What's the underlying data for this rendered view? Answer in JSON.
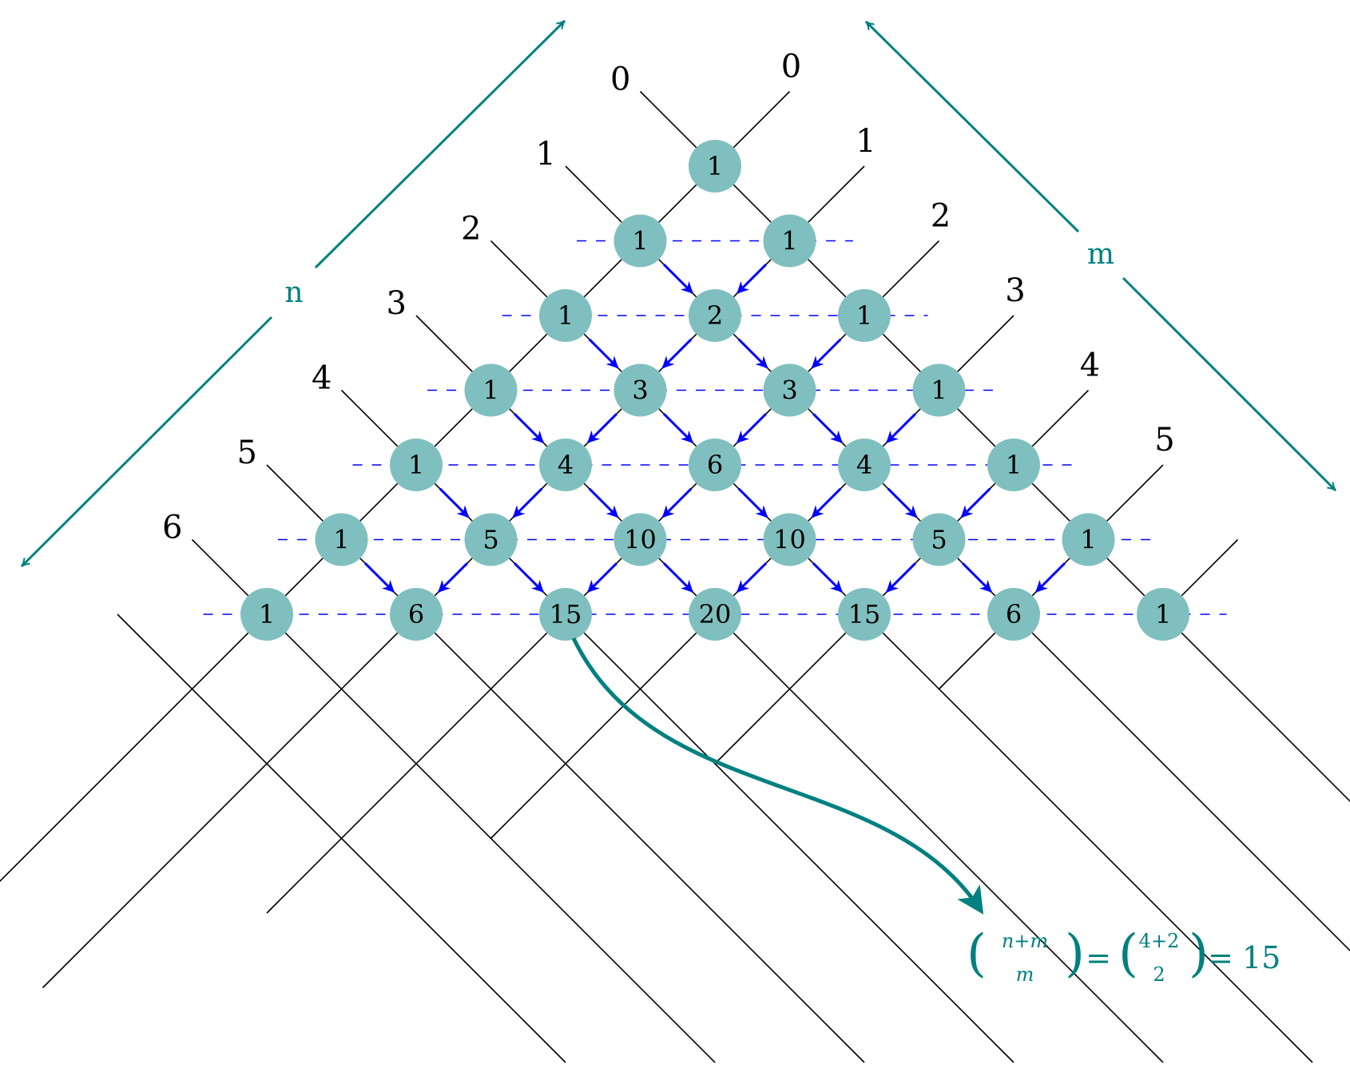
{
  "colors": {
    "node_fill": "#80bfbf",
    "teal": "#008080",
    "arrow_blue": "#0000ff",
    "line_black": "#000000"
  },
  "axes": {
    "n_label": "n",
    "m_label": "m",
    "n_indices": [
      "0",
      "1",
      "2",
      "3",
      "4",
      "5",
      "6"
    ],
    "m_indices": [
      "0",
      "1",
      "2",
      "3",
      "4",
      "5"
    ]
  },
  "triangle_rows": [
    [
      "1"
    ],
    [
      "1",
      "1"
    ],
    [
      "1",
      "2",
      "1"
    ],
    [
      "1",
      "3",
      "3",
      "1"
    ],
    [
      "1",
      "4",
      "6",
      "4",
      "1"
    ],
    [
      "1",
      "5",
      "10",
      "10",
      "5",
      "1"
    ],
    [
      "1",
      "6",
      "15",
      "20",
      "15",
      "6",
      "1"
    ]
  ],
  "highlight": {
    "source_value": "15",
    "formula": {
      "top1": "n+m",
      "bottom1": "m",
      "eq1": "=",
      "top2": "4+2",
      "bottom2": "2",
      "eq2": "=",
      "result": "15"
    }
  }
}
